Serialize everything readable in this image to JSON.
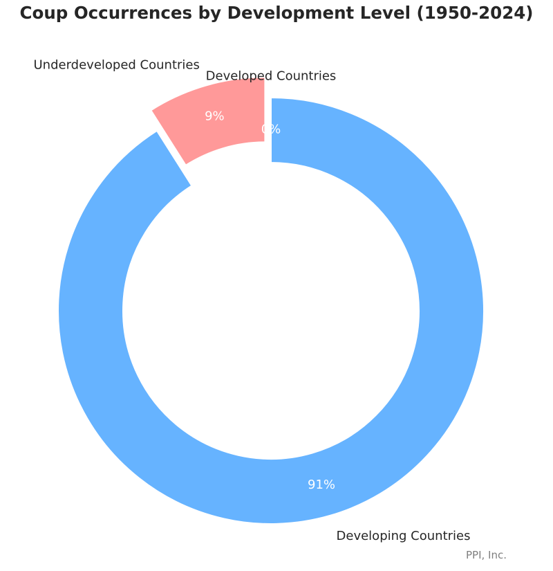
{
  "chart_data": {
    "type": "pie",
    "variant": "donut",
    "title": "Coup Occurrences by Development Level (1950-2024)",
    "labels": [
      "Developed Countries",
      "Underdeveloped Countries",
      "Developing Countries"
    ],
    "values": [
      0,
      9,
      91
    ],
    "value_labels": [
      "0%",
      "9%",
      "91%"
    ],
    "colors": [
      "#ffcc99",
      "#ff9999",
      "#66b3ff"
    ],
    "exploded": [
      false,
      true,
      false
    ]
  },
  "footer": {
    "credit": "PPI, Inc."
  }
}
